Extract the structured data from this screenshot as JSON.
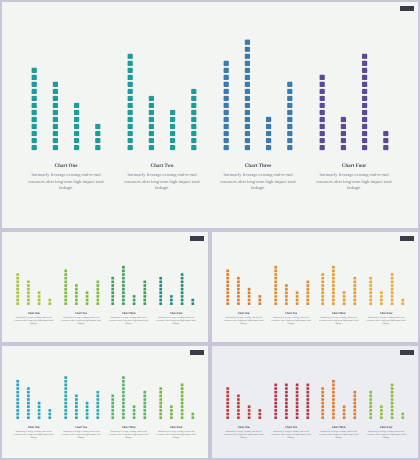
{
  "caption_text": "Intrinsicly leverage existing end-to-end resources after long-term high-impact total linkage.",
  "slides": [
    {
      "tag": "",
      "bg": "#f3f5f2",
      "charts": [
        {
          "title": "Chart One",
          "color": "#1f9b9a",
          "values": [
            12,
            10,
            7,
            4
          ]
        },
        {
          "title": "Chart Two",
          "color": "#1f9b9a",
          "values": [
            14,
            8,
            6,
            9
          ]
        },
        {
          "title": "Chart Three",
          "color": "#3c7bab",
          "values": [
            13,
            16,
            5,
            10
          ]
        },
        {
          "title": "Chart Four",
          "color": "#5b4b94",
          "values": [
            11,
            5,
            14,
            3
          ]
        }
      ]
    },
    {
      "tag": "",
      "bg": "#f3f5f2",
      "charts": [
        {
          "title": "Chart One",
          "color": "#a8c23a",
          "values": [
            9,
            7,
            4,
            2
          ]
        },
        {
          "title": "Chart Two",
          "color": "#7dba3e",
          "values": [
            10,
            6,
            4,
            7
          ]
        },
        {
          "title": "Chart Three",
          "color": "#3e9e5a",
          "values": [
            8,
            11,
            3,
            7
          ]
        },
        {
          "title": "Chart Four",
          "color": "#1f8a78",
          "values": [
            8,
            3,
            9,
            2
          ]
        }
      ]
    },
    {
      "tag": "",
      "bg": "#f3f5f2",
      "charts": [
        {
          "title": "Chart One",
          "color": "#e07a2e",
          "values": [
            10,
            8,
            5,
            3
          ]
        },
        {
          "title": "Chart Two",
          "color": "#e38a2c",
          "values": [
            11,
            6,
            4,
            7
          ]
        },
        {
          "title": "Chart Three",
          "color": "#e69a2e",
          "values": [
            9,
            11,
            4,
            8
          ]
        },
        {
          "title": "Chart Four",
          "color": "#e8aa30",
          "values": [
            8,
            4,
            9,
            2
          ]
        }
      ]
    },
    {
      "tag": "",
      "bg": "#f3f5f2",
      "charts": [
        {
          "title": "Chart One",
          "color": "#2aa0c8",
          "values": [
            11,
            9,
            5,
            3
          ]
        },
        {
          "title": "Chart Two",
          "color": "#2aa6b6",
          "values": [
            12,
            7,
            5,
            8
          ]
        },
        {
          "title": "Chart Three",
          "color": "#58b36a",
          "values": [
            7,
            12,
            4,
            8
          ]
        },
        {
          "title": "Chart Four",
          "color": "#7ab640",
          "values": [
            9,
            4,
            10,
            2
          ]
        }
      ]
    },
    {
      "tag": "",
      "bg": "#ecedf1",
      "charts": [
        {
          "title": "Chart One",
          "color": "#c43a3a",
          "values": [
            9,
            7,
            4,
            3
          ]
        },
        {
          "title": "Chart Two",
          "color": "#b7334a",
          "values": [
            10,
            10,
            10,
            10
          ]
        },
        {
          "title": "Chart Three",
          "color": "#e37b2e",
          "values": [
            9,
            11,
            4,
            8
          ]
        },
        {
          "title": "Chart Four",
          "color": "#8abf3e",
          "values": [
            8,
            4,
            10,
            2
          ]
        }
      ]
    }
  ]
}
